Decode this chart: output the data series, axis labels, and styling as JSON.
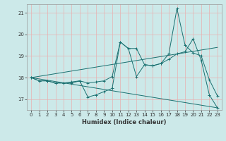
{
  "xlabel": "Humidex (Indice chaleur)",
  "ylabel": "",
  "xlim": [
    -0.5,
    23.5
  ],
  "ylim": [
    16.5,
    21.4
  ],
  "xticks": [
    0,
    1,
    2,
    3,
    4,
    5,
    6,
    7,
    8,
    9,
    10,
    11,
    12,
    13,
    14,
    15,
    16,
    17,
    18,
    19,
    20,
    21,
    22,
    23
  ],
  "yticks": [
    17,
    18,
    19,
    20,
    21
  ],
  "background_color": "#cce9e9",
  "grid_color": "#ffffff",
  "line_color": "#1a7070",
  "series": [
    {
      "x": [
        0,
        1,
        2,
        3,
        4,
        5,
        6,
        7,
        8,
        9,
        10,
        11,
        12,
        13,
        14,
        15,
        16,
        17,
        18,
        19,
        20,
        21,
        22,
        23
      ],
      "y": [
        18.0,
        17.85,
        17.85,
        17.75,
        17.75,
        17.8,
        17.85,
        17.75,
        17.8,
        17.85,
        18.05,
        19.65,
        19.35,
        19.35,
        18.6,
        18.55,
        18.65,
        19.1,
        21.2,
        19.5,
        19.15,
        19.0,
        17.9,
        17.15
      ]
    },
    {
      "x": [
        0,
        1,
        2,
        3,
        4,
        5,
        6,
        7,
        8,
        9,
        10,
        11,
        12,
        13,
        14,
        15,
        16,
        17,
        18,
        19,
        20,
        21,
        22,
        23
      ],
      "y": [
        18.0,
        17.85,
        17.85,
        17.75,
        17.75,
        17.75,
        17.85,
        17.1,
        17.2,
        17.35,
        17.5,
        19.65,
        19.35,
        18.05,
        18.6,
        18.55,
        18.65,
        18.85,
        19.1,
        19.2,
        19.8,
        18.8,
        17.2,
        16.6
      ]
    },
    {
      "x": [
        0,
        23
      ],
      "y": [
        18.0,
        19.4
      ]
    },
    {
      "x": [
        0,
        23
      ],
      "y": [
        18.0,
        16.6
      ]
    }
  ]
}
